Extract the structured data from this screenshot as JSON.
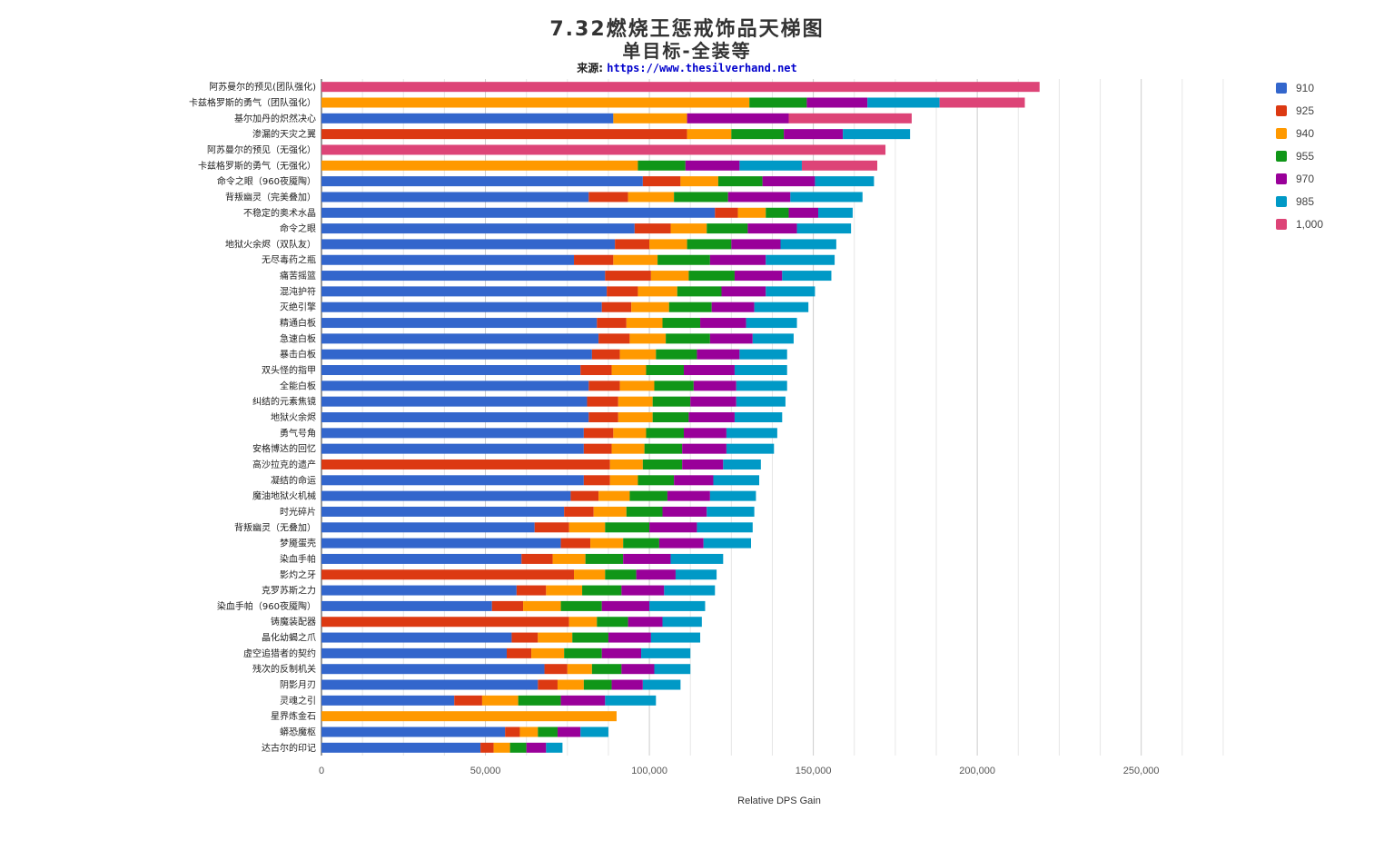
{
  "chart_data": {
    "type": "bar",
    "orientation": "horizontal",
    "stacked": true,
    "title": "7.32燃烧王惩戒饰品天梯图",
    "subtitle": "单目标-全装等",
    "source_label": "来源:",
    "source_url": "https://www.thesilverhand.net",
    "xlabel": "Relative DPS Gain",
    "ylabel": "",
    "xlim": [
      0,
      280000
    ],
    "xticks": [
      0,
      50000,
      100000,
      150000,
      200000,
      250000
    ],
    "xtick_labels": [
      "0",
      "50,000",
      "100,000",
      "150,000",
      "200,000",
      "250,000"
    ],
    "grid": true,
    "legend_position": "right",
    "series": [
      {
        "name": "910",
        "color": "#3366cc"
      },
      {
        "name": "925",
        "color": "#dc3912"
      },
      {
        "name": "940",
        "color": "#ff9900"
      },
      {
        "name": "955",
        "color": "#109618"
      },
      {
        "name": "970",
        "color": "#990099"
      },
      {
        "name": "985",
        "color": "#0099c6"
      },
      {
        "name": "1,000",
        "color": "#dd4477"
      }
    ],
    "categories": [
      {
        "label": "阿苏曼尔的预见(团队强化)",
        "values": [
          null,
          null,
          null,
          null,
          null,
          null,
          219000
        ]
      },
      {
        "label": "卡兹格罗斯的勇气（团队强化）",
        "values": [
          null,
          null,
          130500,
          148000,
          166500,
          188500,
          214500
        ]
      },
      {
        "label": "基尔加丹的炽然决心",
        "values": [
          89000,
          null,
          111500,
          null,
          142500,
          null,
          180000
        ]
      },
      {
        "label": "渗漏的天灾之翼",
        "values": [
          null,
          111500,
          125000,
          141000,
          159000,
          179500,
          null
        ]
      },
      {
        "label": "阿苏曼尔的预见（无强化）",
        "values": [
          null,
          null,
          null,
          null,
          null,
          null,
          172000
        ]
      },
      {
        "label": "卡兹格罗斯的勇气（无强化）",
        "values": [
          null,
          null,
          96500,
          111000,
          127500,
          146500,
          169500
        ]
      },
      {
        "label": "命令之眼（960夜魇陶）",
        "values": [
          98000,
          109500,
          121000,
          134500,
          150500,
          168500,
          null
        ]
      },
      {
        "label": "背叛幽灵（完美叠加）",
        "values": [
          81500,
          93500,
          107500,
          124000,
          143000,
          165000,
          null
        ]
      },
      {
        "label": "不稳定的奥术水晶",
        "values": [
          120000,
          127000,
          135500,
          142500,
          151500,
          162000,
          null
        ]
      },
      {
        "label": "命令之眼",
        "values": [
          95500,
          106500,
          117500,
          130000,
          145000,
          161500,
          null
        ]
      },
      {
        "label": "地狱火余烬（双队友）",
        "values": [
          89500,
          100000,
          111500,
          125000,
          140000,
          157000,
          null
        ]
      },
      {
        "label": "无尽毒药之瓶",
        "values": [
          77000,
          89000,
          102500,
          118500,
          135500,
          156500,
          null
        ]
      },
      {
        "label": "痛苦摇篮",
        "values": [
          86500,
          100500,
          112000,
          126000,
          140500,
          155500,
          null
        ]
      },
      {
        "label": "混沌护符",
        "values": [
          87000,
          96500,
          108500,
          122000,
          135500,
          150500,
          null
        ]
      },
      {
        "label": "灭绝引擎",
        "values": [
          85500,
          94500,
          106000,
          119000,
          132000,
          148500,
          null
        ]
      },
      {
        "label": "精通白板",
        "values": [
          84000,
          93000,
          104000,
          115500,
          129500,
          145000,
          null
        ]
      },
      {
        "label": "急速白板",
        "values": [
          84500,
          94000,
          105000,
          118500,
          131500,
          144000,
          null
        ]
      },
      {
        "label": "暴击白板",
        "values": [
          82500,
          91000,
          102000,
          114500,
          127500,
          142000,
          null
        ]
      },
      {
        "label": "双头怪的指甲",
        "values": [
          79000,
          88500,
          99000,
          110500,
          126000,
          142000,
          null
        ]
      },
      {
        "label": "全能白板",
        "values": [
          81500,
          91000,
          101500,
          113500,
          126500,
          142000,
          null
        ]
      },
      {
        "label": "纠结的元素焦镜",
        "values": [
          81000,
          90500,
          101000,
          112500,
          126500,
          141500,
          null
        ]
      },
      {
        "label": "地狱火余烬",
        "values": [
          81500,
          90500,
          101000,
          112000,
          126000,
          140500,
          null
        ]
      },
      {
        "label": "勇气号角",
        "values": [
          80000,
          89000,
          99000,
          110500,
          123500,
          139000,
          null
        ]
      },
      {
        "label": "安格博达的回忆",
        "values": [
          80000,
          88500,
          98500,
          110000,
          123500,
          138000,
          null
        ]
      },
      {
        "label": "高沙拉克的遗产",
        "values": [
          null,
          88000,
          98000,
          110000,
          122500,
          134000,
          null
        ]
      },
      {
        "label": "凝结的命运",
        "values": [
          80000,
          88000,
          96500,
          107500,
          119500,
          133500,
          null
        ]
      },
      {
        "label": "魔油地狱火机械",
        "values": [
          76000,
          84500,
          94000,
          105500,
          118500,
          132500,
          null
        ]
      },
      {
        "label": "时光碎片",
        "values": [
          74000,
          83000,
          93000,
          104000,
          117500,
          132000,
          null
        ]
      },
      {
        "label": "背叛幽灵（无叠加）",
        "values": [
          65000,
          75500,
          86500,
          100000,
          114500,
          131500,
          null
        ]
      },
      {
        "label": "梦魇蛋壳",
        "values": [
          73000,
          82000,
          92000,
          103000,
          116500,
          131000,
          null
        ]
      },
      {
        "label": "染血手帕",
        "values": [
          61000,
          70500,
          80500,
          92000,
          106500,
          122500,
          null
        ]
      },
      {
        "label": "影灼之牙",
        "values": [
          null,
          77000,
          86500,
          96000,
          108000,
          120500,
          null
        ]
      },
      {
        "label": "克罗苏斯之力",
        "values": [
          59500,
          68500,
          79500,
          91500,
          104500,
          120000,
          null
        ]
      },
      {
        "label": "染血手帕（960夜魇陶）",
        "values": [
          52000,
          61500,
          73000,
          85500,
          100000,
          117000,
          null
        ]
      },
      {
        "label": "铸魔装配器",
        "values": [
          null,
          75500,
          84000,
          93500,
          104000,
          116000,
          null
        ]
      },
      {
        "label": "晶化幼蝎之爪",
        "values": [
          58000,
          66000,
          76500,
          87500,
          100500,
          115500,
          null
        ]
      },
      {
        "label": "虚空追猎者的契约",
        "values": [
          56500,
          64000,
          74000,
          85500,
          97500,
          112500,
          null
        ]
      },
      {
        "label": "残次的反制机关",
        "values": [
          68000,
          75000,
          82500,
          91500,
          101500,
          112500,
          null
        ]
      },
      {
        "label": "阴影月刃",
        "values": [
          66000,
          72000,
          80000,
          88500,
          98000,
          109500,
          null
        ]
      },
      {
        "label": "灵魂之引",
        "values": [
          40500,
          49000,
          60000,
          73000,
          86500,
          102000,
          null
        ]
      },
      {
        "label": "星界炼金石",
        "values": [
          null,
          null,
          90000,
          null,
          null,
          null,
          null
        ]
      },
      {
        "label": "蟒恐魔枢",
        "values": [
          56000,
          60500,
          66000,
          72000,
          79000,
          87500,
          null
        ]
      },
      {
        "label": "达古尔的印记",
        "values": [
          48500,
          52500,
          57500,
          62500,
          68500,
          73500,
          null
        ]
      }
    ]
  }
}
